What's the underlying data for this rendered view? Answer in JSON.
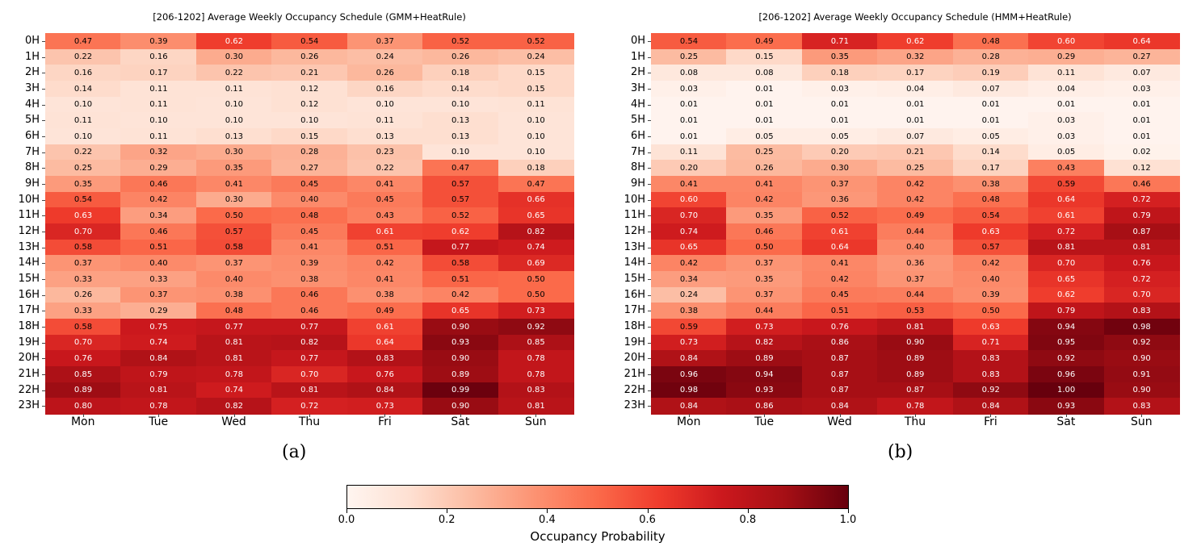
{
  "chart_data": [
    {
      "type": "heatmap",
      "title": "[206-1202] Average Weekly Occupancy Schedule (GMM+HeatRule)",
      "panel_label": "(a)",
      "x": [
        "Mon",
        "Tue",
        "Wed",
        "Thu",
        "Fri",
        "Sat",
        "Sun"
      ],
      "y": [
        "0H",
        "1H",
        "2H",
        "3H",
        "4H",
        "5H",
        "6H",
        "7H",
        "8H",
        "9H",
        "10H",
        "11H",
        "12H",
        "13H",
        "14H",
        "15H",
        "16H",
        "17H",
        "18H",
        "19H",
        "20H",
        "21H",
        "22H",
        "23H"
      ],
      "values": [
        [
          0.47,
          0.39,
          0.62,
          0.54,
          0.37,
          0.52,
          0.52
        ],
        [
          0.22,
          0.16,
          0.3,
          0.26,
          0.24,
          0.26,
          0.24
        ],
        [
          0.16,
          0.17,
          0.22,
          0.21,
          0.26,
          0.18,
          0.15
        ],
        [
          0.14,
          0.11,
          0.11,
          0.12,
          0.16,
          0.14,
          0.15
        ],
        [
          0.1,
          0.11,
          0.1,
          0.12,
          0.1,
          0.1,
          0.11
        ],
        [
          0.11,
          0.1,
          0.1,
          0.1,
          0.11,
          0.13,
          0.1
        ],
        [
          0.1,
          0.11,
          0.13,
          0.15,
          0.13,
          0.13,
          0.1
        ],
        [
          0.22,
          0.32,
          0.3,
          0.28,
          0.23,
          0.1,
          0.1
        ],
        [
          0.25,
          0.29,
          0.35,
          0.27,
          0.22,
          0.47,
          0.18
        ],
        [
          0.35,
          0.46,
          0.41,
          0.45,
          0.41,
          0.57,
          0.47
        ],
        [
          0.54,
          0.42,
          0.3,
          0.4,
          0.45,
          0.57,
          0.66
        ],
        [
          0.63,
          0.34,
          0.5,
          0.48,
          0.43,
          0.52,
          0.65
        ],
        [
          0.7,
          0.46,
          0.57,
          0.45,
          0.61,
          0.62,
          0.82
        ],
        [
          0.58,
          0.51,
          0.58,
          0.41,
          0.51,
          0.77,
          0.74
        ],
        [
          0.37,
          0.4,
          0.37,
          0.39,
          0.42,
          0.58,
          0.69
        ],
        [
          0.33,
          0.33,
          0.4,
          0.38,
          0.41,
          0.51,
          0.5
        ],
        [
          0.26,
          0.37,
          0.38,
          0.46,
          0.38,
          0.42,
          0.5
        ],
        [
          0.33,
          0.29,
          0.48,
          0.46,
          0.49,
          0.65,
          0.73
        ],
        [
          0.58,
          0.75,
          0.77,
          0.77,
          0.61,
          0.9,
          0.92
        ],
        [
          0.7,
          0.74,
          0.81,
          0.82,
          0.64,
          0.93,
          0.85
        ],
        [
          0.76,
          0.84,
          0.81,
          0.77,
          0.83,
          0.9,
          0.78
        ],
        [
          0.85,
          0.79,
          0.78,
          0.7,
          0.76,
          0.89,
          0.78
        ],
        [
          0.89,
          0.81,
          0.74,
          0.81,
          0.84,
          0.99,
          0.83
        ],
        [
          0.8,
          0.78,
          0.82,
          0.72,
          0.73,
          0.9,
          0.81
        ]
      ],
      "colormap": "Reds",
      "vmin": 0.0,
      "vmax": 1.0
    },
    {
      "type": "heatmap",
      "title": "[206-1202] Average Weekly Occupancy Schedule (HMM+HeatRule)",
      "panel_label": "(b)",
      "x": [
        "Mon",
        "Tue",
        "Wed",
        "Thu",
        "Fri",
        "Sat",
        "Sun"
      ],
      "y": [
        "0H",
        "1H",
        "2H",
        "3H",
        "4H",
        "5H",
        "6H",
        "7H",
        "8H",
        "9H",
        "10H",
        "11H",
        "12H",
        "13H",
        "14H",
        "15H",
        "16H",
        "17H",
        "18H",
        "19H",
        "20H",
        "21H",
        "22H",
        "23H"
      ],
      "values": [
        [
          0.54,
          0.49,
          0.71,
          0.62,
          0.48,
          0.6,
          0.64
        ],
        [
          0.25,
          0.15,
          0.35,
          0.32,
          0.28,
          0.29,
          0.27
        ],
        [
          0.08,
          0.08,
          0.18,
          0.17,
          0.19,
          0.11,
          0.07
        ],
        [
          0.03,
          0.01,
          0.03,
          0.04,
          0.07,
          0.04,
          0.03
        ],
        [
          0.01,
          0.01,
          0.01,
          0.01,
          0.01,
          0.01,
          0.01
        ],
        [
          0.01,
          0.01,
          0.01,
          0.01,
          0.01,
          0.03,
          0.01
        ],
        [
          0.01,
          0.05,
          0.05,
          0.07,
          0.05,
          0.03,
          0.01
        ],
        [
          0.11,
          0.25,
          0.2,
          0.21,
          0.14,
          0.05,
          0.02
        ],
        [
          0.2,
          0.26,
          0.3,
          0.25,
          0.17,
          0.43,
          0.12
        ],
        [
          0.41,
          0.41,
          0.37,
          0.42,
          0.38,
          0.59,
          0.46
        ],
        [
          0.6,
          0.42,
          0.36,
          0.42,
          0.48,
          0.64,
          0.72
        ],
        [
          0.7,
          0.35,
          0.52,
          0.49,
          0.54,
          0.61,
          0.79
        ],
        [
          0.74,
          0.46,
          0.61,
          0.44,
          0.63,
          0.72,
          0.87
        ],
        [
          0.65,
          0.5,
          0.64,
          0.4,
          0.57,
          0.81,
          0.81
        ],
        [
          0.42,
          0.37,
          0.41,
          0.36,
          0.42,
          0.7,
          0.76
        ],
        [
          0.34,
          0.35,
          0.42,
          0.37,
          0.4,
          0.65,
          0.72
        ],
        [
          0.24,
          0.37,
          0.45,
          0.44,
          0.39,
          0.62,
          0.7
        ],
        [
          0.38,
          0.44,
          0.51,
          0.53,
          0.5,
          0.79,
          0.83
        ],
        [
          0.59,
          0.73,
          0.76,
          0.81,
          0.63,
          0.94,
          0.98
        ],
        [
          0.73,
          0.82,
          0.86,
          0.9,
          0.71,
          0.95,
          0.92
        ],
        [
          0.84,
          0.89,
          0.87,
          0.89,
          0.83,
          0.92,
          0.9
        ],
        [
          0.96,
          0.94,
          0.87,
          0.89,
          0.83,
          0.96,
          0.91
        ],
        [
          0.98,
          0.93,
          0.87,
          0.87,
          0.92,
          1.0,
          0.9
        ],
        [
          0.84,
          0.86,
          0.84,
          0.78,
          0.84,
          0.93,
          0.83
        ]
      ],
      "colormap": "Reds",
      "vmin": 0.0,
      "vmax": 1.0
    }
  ],
  "colorbar": {
    "label": "Occupancy Probability",
    "ticks": [
      "0.0",
      "0.2",
      "0.4",
      "0.6",
      "0.8",
      "1.0"
    ],
    "range": [
      0.0,
      1.0
    ],
    "colors": [
      "#fff5f0",
      "#fee0d2",
      "#fcbba1",
      "#fc9272",
      "#fb6a4a",
      "#ef3b2c",
      "#cb181d",
      "#a50f15",
      "#67000d"
    ]
  }
}
